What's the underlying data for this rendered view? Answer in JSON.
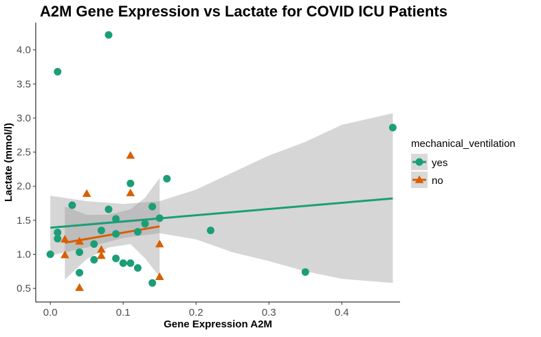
{
  "chart_data": {
    "type": "scatter",
    "title": "A2M Gene Expression vs Lactate for COVID ICU Patients",
    "xlabel": "Gene Expression A2M",
    "ylabel": "Lactate (mmol/l)",
    "xlim": [
      -0.02,
      0.48
    ],
    "ylim": [
      0.3,
      4.4
    ],
    "x_ticks": [
      0.0,
      0.1,
      0.2,
      0.3,
      0.4
    ],
    "x_tick_labels": [
      "0.0",
      "0.1",
      "0.2",
      "0.3",
      "0.4"
    ],
    "y_ticks": [
      0.5,
      1.0,
      1.5,
      2.0,
      2.5,
      3.0,
      3.5,
      4.0
    ],
    "y_tick_labels": [
      "0.5",
      "1.0",
      "1.5",
      "2.0",
      "2.5",
      "3.0",
      "3.5",
      "4.0"
    ],
    "grid": false,
    "legend": {
      "title": "mechanical_ventilation",
      "position": "right"
    },
    "series": [
      {
        "name": "yes",
        "marker": "circle",
        "color": "#1b9e77",
        "points": [
          [
            0.0,
            1.0
          ],
          [
            0.01,
            3.68
          ],
          [
            0.01,
            1.32
          ],
          [
            0.01,
            1.23
          ],
          [
            0.03,
            1.72
          ],
          [
            0.04,
            1.03
          ],
          [
            0.04,
            0.73
          ],
          [
            0.06,
            1.15
          ],
          [
            0.06,
            0.92
          ],
          [
            0.07,
            1.35
          ],
          [
            0.08,
            4.22
          ],
          [
            0.08,
            1.66
          ],
          [
            0.09,
            1.52
          ],
          [
            0.09,
            0.94
          ],
          [
            0.09,
            1.3
          ],
          [
            0.1,
            0.87
          ],
          [
            0.11,
            0.87
          ],
          [
            0.11,
            2.04
          ],
          [
            0.12,
            0.8
          ],
          [
            0.12,
            1.33
          ],
          [
            0.13,
            1.45
          ],
          [
            0.14,
            1.7
          ],
          [
            0.14,
            0.58
          ],
          [
            0.15,
            1.53
          ],
          [
            0.16,
            2.11
          ],
          [
            0.22,
            1.35
          ],
          [
            0.35,
            0.74
          ],
          [
            0.47,
            2.86
          ]
        ],
        "fit": {
          "x": [
            0.0,
            0.47
          ],
          "y": [
            1.39,
            1.82
          ]
        }
      },
      {
        "name": "no",
        "marker": "triangle",
        "color": "#d95f02",
        "points": [
          [
            0.02,
            1.22
          ],
          [
            0.02,
            0.99
          ],
          [
            0.04,
            1.19
          ],
          [
            0.04,
            0.51
          ],
          [
            0.05,
            1.89
          ],
          [
            0.07,
            1.07
          ],
          [
            0.07,
            0.98
          ],
          [
            0.11,
            2.45
          ],
          [
            0.11,
            1.9
          ],
          [
            0.15,
            1.15
          ],
          [
            0.15,
            0.67
          ]
        ],
        "fit": {
          "x": [
            0.02,
            0.15
          ],
          "y": [
            1.17,
            1.41
          ]
        }
      }
    ],
    "confidence_bands": [
      {
        "series": "yes",
        "x": [
          0.0,
          0.05,
          0.1,
          0.15,
          0.2,
          0.25,
          0.3,
          0.35,
          0.4,
          0.47
        ],
        "upper": [
          1.86,
          1.78,
          1.74,
          1.78,
          1.95,
          2.2,
          2.45,
          2.65,
          2.9,
          3.07
        ],
        "lower": [
          0.98,
          1.1,
          1.24,
          1.31,
          1.22,
          1.03,
          0.9,
          0.75,
          0.64,
          0.58
        ]
      },
      {
        "series": "no",
        "x": [
          0.02,
          0.05,
          0.08,
          0.11,
          0.13,
          0.15
        ],
        "upper": [
          1.7,
          1.58,
          1.58,
          1.66,
          1.83,
          2.12
        ],
        "lower": [
          0.63,
          0.93,
          1.1,
          1.15,
          0.94,
          0.67
        ]
      }
    ]
  }
}
